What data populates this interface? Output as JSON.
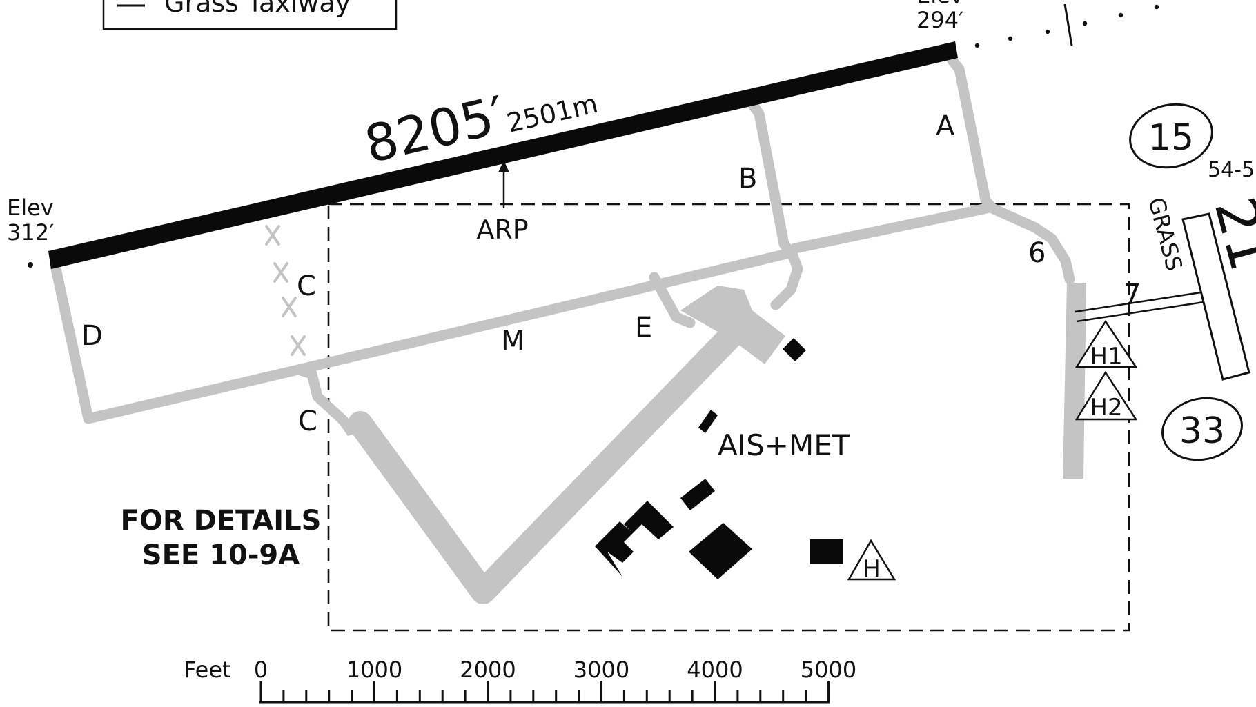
{
  "legend": {
    "item": "Grass Taxiway"
  },
  "runway_main": {
    "length_ft": "8205′",
    "length_m": "2501m",
    "west_end": {
      "elev_label": "Elev",
      "elev_value": "312′"
    },
    "east_end": {
      "elev_label": "Elev",
      "elev_value": "294′"
    },
    "arp": "ARP"
  },
  "grass_runway": {
    "label": "GRASS",
    "number_top": "15",
    "number_bottom": "33",
    "heading_partial": "21",
    "dimension_partial": "54-5"
  },
  "taxiways": {
    "a": "A",
    "b": "B",
    "c_upper": "C",
    "c_lower": "C",
    "d": "D",
    "e": "E",
    "m": "M",
    "six": "6",
    "seven": "7"
  },
  "helipads": {
    "h1": "H1",
    "h2": "H2",
    "h": "H"
  },
  "facilities": {
    "ais_met": "AIS+MET"
  },
  "note": {
    "line1": "FOR DETAILS",
    "line2": "SEE 10-9A"
  },
  "scale": {
    "unit": "Feet",
    "ticks": [
      "0",
      "1000",
      "2000",
      "3000",
      "4000",
      "5000"
    ]
  }
}
